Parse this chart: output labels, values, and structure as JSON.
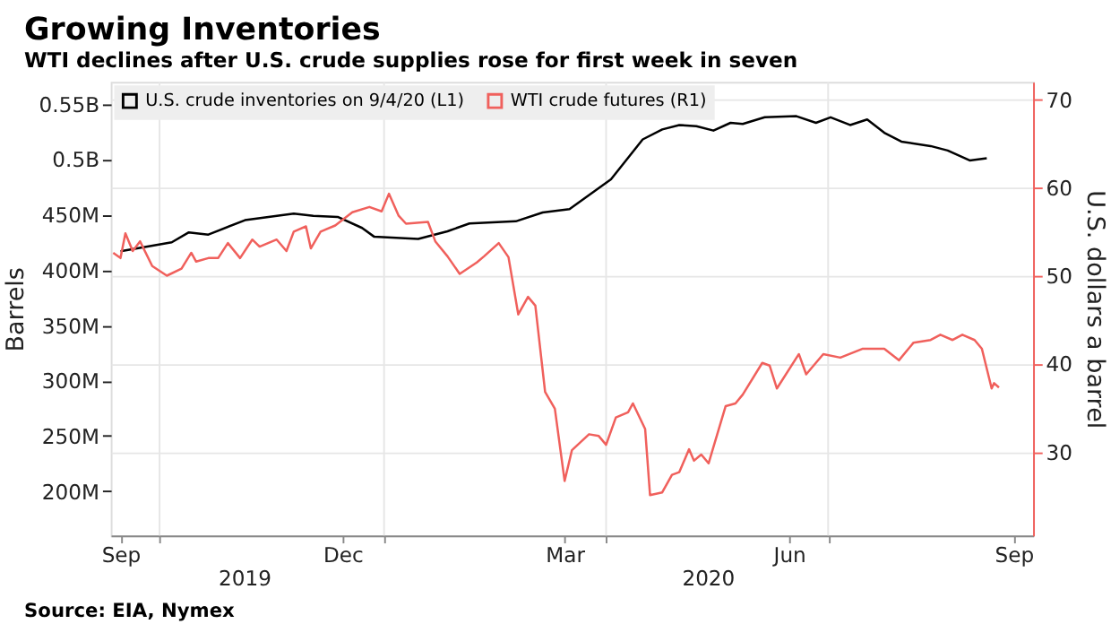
{
  "chart_data": {
    "type": "line",
    "title": "Growing Inventories",
    "subtitle": "WTI declines after U.S. crude supplies rose for first week in seven",
    "ylabel": "Barrels",
    "y2label": "U.S. dollars a barrel",
    "xlim": [
      "2019-09-11",
      "2020-09-23"
    ],
    "xticks": [
      {
        "value": "2019-09-15",
        "label": "Sep"
      },
      {
        "value": "2019-12-15",
        "label": "Dec"
      },
      {
        "value": "2020-03-15",
        "label": "Mar"
      },
      {
        "value": "2020-06-15",
        "label": "Jun"
      },
      {
        "value": "2020-09-15",
        "label": "Sep"
      },
      {
        "value": "2019-10-01",
        "label": null
      },
      {
        "value": "2020-01-01",
        "label": null
      },
      {
        "value": "2020-04-01",
        "label": null
      },
      {
        "value": "2020-07-01",
        "label": null
      }
    ],
    "ylim": [
      160000000,
      570000000
    ],
    "yticks": [
      {
        "value": 200000000,
        "label": "200M"
      },
      {
        "value": 250000000,
        "label": "250M"
      },
      {
        "value": 300000000,
        "label": "300M"
      },
      {
        "value": 350000000,
        "label": "350M"
      },
      {
        "value": 400000000,
        "label": "400M"
      },
      {
        "value": 450000000,
        "label": "450M"
      },
      {
        "value": 500000000,
        "label": "0.5B"
      },
      {
        "value": 550000000,
        "label": "0.55B"
      }
    ],
    "y2lim": [
      20.5,
      72
    ],
    "y2ticks": [
      30,
      40,
      50,
      60,
      70
    ],
    "grid": true,
    "legend": "top left",
    "line_style": "solid",
    "series": [
      {
        "name": "U.S. crude inventories on 9/4/20 (L1)",
        "color": "#000000",
        "axis": "y",
        "x": [
          "2019-09-15",
          "2019-10-06",
          "2019-10-13",
          "2019-10-21",
          "2019-11-05",
          "2019-11-25",
          "2019-12-03",
          "2019-12-13",
          "2019-12-23",
          "2019-12-28",
          "2020-01-06",
          "2020-01-15",
          "2020-01-27",
          "2020-02-05",
          "2020-02-24",
          "2020-03-06",
          "2020-03-17",
          "2020-04-03",
          "2020-04-16",
          "2020-04-24",
          "2020-05-01",
          "2020-05-08",
          "2020-05-15",
          "2020-05-22",
          "2020-05-27",
          "2020-06-05",
          "2020-06-18",
          "2020-06-26",
          "2020-07-02",
          "2020-07-10",
          "2020-07-17",
          "2020-07-24",
          "2020-07-31",
          "2020-08-12",
          "2020-08-19",
          "2020-08-28",
          "2020-09-04"
        ],
        "values": [
          417000000,
          425000000,
          434000000,
          432000000,
          445000000,
          451000000,
          449000000,
          448000000,
          438000000,
          430000000,
          429000000,
          428000000,
          435000000,
          442000000,
          444000000,
          452000000,
          455000000,
          482000000,
          518000000,
          527000000,
          531000000,
          530000000,
          526000000,
          533000000,
          532000000,
          538000000,
          539000000,
          533000000,
          538000000,
          531000000,
          536000000,
          524000000,
          516000000,
          512000000,
          508000000,
          499000000,
          501000000
        ]
      },
      {
        "name": "WTI crude futures (R1)",
        "color": "#f0605c",
        "axis": "y2",
        "x": [
          "2019-09-12",
          "2019-09-15",
          "2019-09-17",
          "2019-09-20",
          "2019-09-23",
          "2019-09-28",
          "2019-10-04",
          "2019-10-10",
          "2019-10-14",
          "2019-10-16",
          "2019-10-21",
          "2019-10-25",
          "2019-10-29",
          "2019-11-03",
          "2019-11-08",
          "2019-11-11",
          "2019-11-18",
          "2019-11-22",
          "2019-11-25",
          "2019-11-30",
          "2019-12-02",
          "2019-12-06",
          "2019-12-12",
          "2019-12-19",
          "2019-12-26",
          "2019-12-31",
          "2020-01-03",
          "2020-01-07",
          "2020-01-10",
          "2020-01-19",
          "2020-01-22",
          "2020-01-27",
          "2020-02-01",
          "2020-02-08",
          "2020-02-11",
          "2020-02-17",
          "2020-02-21",
          "2020-02-25",
          "2020-02-29",
          "2020-03-03",
          "2020-03-07",
          "2020-03-11",
          "2020-03-15",
          "2020-03-18",
          "2020-03-25",
          "2020-03-29",
          "2020-04-01",
          "2020-04-05",
          "2020-04-10",
          "2020-04-12",
          "2020-04-17",
          "2020-04-19",
          "2020-04-24",
          "2020-04-28",
          "2020-05-01",
          "2020-05-05",
          "2020-05-07",
          "2020-05-10",
          "2020-05-13",
          "2020-05-20",
          "2020-05-24",
          "2020-05-27",
          "2020-06-04",
          "2020-06-07",
          "2020-06-10",
          "2020-06-19",
          "2020-06-22",
          "2020-06-29",
          "2020-07-06",
          "2020-07-15",
          "2020-07-24",
          "2020-07-30",
          "2020-08-05",
          "2020-08-12",
          "2020-08-16",
          "2020-08-21",
          "2020-08-25",
          "2020-08-30",
          "2020-09-02",
          "2020-09-06",
          "2020-09-07",
          "2020-09-09"
        ],
        "values": [
          52.6,
          52.0,
          54.8,
          52.8,
          53.9,
          51.1,
          50.0,
          50.8,
          52.6,
          51.6,
          52.0,
          52.0,
          53.7,
          52.0,
          54.1,
          53.3,
          54.1,
          52.8,
          55.0,
          55.6,
          53.1,
          55.0,
          55.7,
          57.2,
          57.8,
          57.3,
          59.3,
          56.8,
          55.9,
          56.1,
          53.9,
          52.2,
          50.2,
          51.5,
          52.2,
          53.7,
          52.1,
          45.6,
          47.6,
          46.6,
          36.8,
          34.9,
          26.7,
          30.2,
          32.0,
          31.8,
          30.8,
          33.9,
          34.5,
          35.5,
          32.6,
          25.1,
          25.4,
          27.4,
          27.7,
          30.3,
          29.0,
          29.7,
          28.7,
          35.2,
          35.5,
          36.5,
          40.1,
          39.8,
          37.2,
          41.1,
          38.8,
          41.1,
          40.7,
          41.7,
          41.7,
          40.4,
          42.4,
          42.7,
          43.3,
          42.7,
          43.3,
          42.7,
          41.7,
          37.2,
          37.8,
          37.3
        ]
      }
    ],
    "annotations": [
      "2019",
      "2020",
      "Source: EIA, Nymex"
    ]
  }
}
